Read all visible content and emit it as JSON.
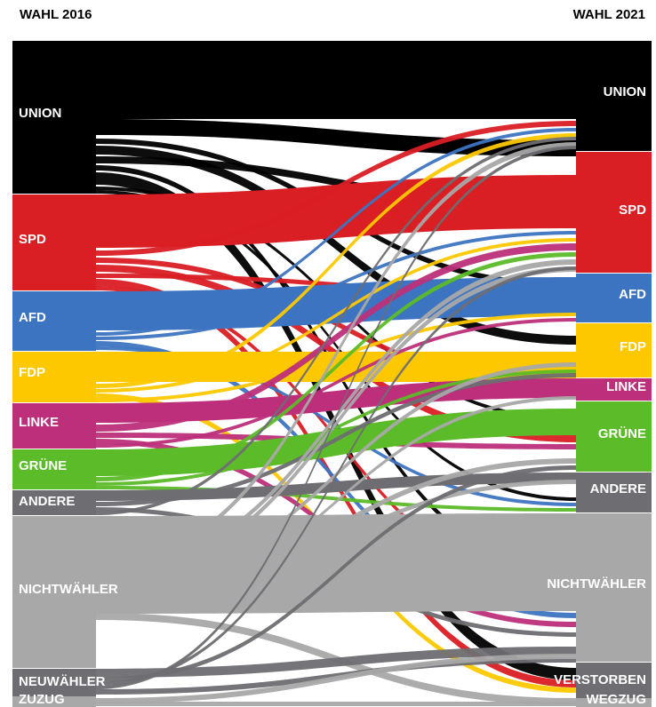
{
  "headers": {
    "left": "WAHL 2016",
    "right": "WAHL 2021"
  },
  "colors": {
    "UNION": "#000000",
    "SPD": "#d91e24",
    "AFD": "#3d74c1",
    "FDP": "#fdc800",
    "LINKE": "#bd2f7a",
    "GRUENE": "#5cbb28",
    "ANDERE": "#6e6e72",
    "NICHTWAEHLER": "#a8a8a8",
    "NEUWAEHLER": "#6e6e72",
    "ZUZUG": "#a8a8a8",
    "VERSTORBEN": "#6e6e72",
    "WEGZUG": "#a8a8a8"
  },
  "left_nodes": [
    {
      "id": "UNION",
      "label": "UNION"
    },
    {
      "id": "SPD",
      "label": "SPD"
    },
    {
      "id": "AFD",
      "label": "AFD"
    },
    {
      "id": "FDP",
      "label": "FDP"
    },
    {
      "id": "LINKE",
      "label": "LINKE"
    },
    {
      "id": "GRUENE",
      "label": "GRÜNE"
    },
    {
      "id": "ANDERE",
      "label": "ANDERE"
    },
    {
      "id": "NICHTWAEHLER",
      "label": "NICHTWÄHLER"
    },
    {
      "id": "NEUWAEHLER",
      "label": "NEUWÄHLER"
    },
    {
      "id": "ZUZUG",
      "label": "ZUZUG"
    }
  ],
  "right_nodes": [
    {
      "id": "UNION",
      "label": "UNION"
    },
    {
      "id": "SPD",
      "label": "SPD"
    },
    {
      "id": "AFD",
      "label": "AFD"
    },
    {
      "id": "FDP",
      "label": "FDP"
    },
    {
      "id": "LINKE",
      "label": "LINKE"
    },
    {
      "id": "GRUENE",
      "label": "GRÜNE"
    },
    {
      "id": "ANDERE",
      "label": "ANDERE"
    },
    {
      "id": "NICHTWAEHLER",
      "label": "NICHTWÄHLER"
    },
    {
      "id": "VERSTORBEN",
      "label": "VERSTORBEN"
    },
    {
      "id": "WEGZUG",
      "label": "WEGZUG"
    }
  ]
}
